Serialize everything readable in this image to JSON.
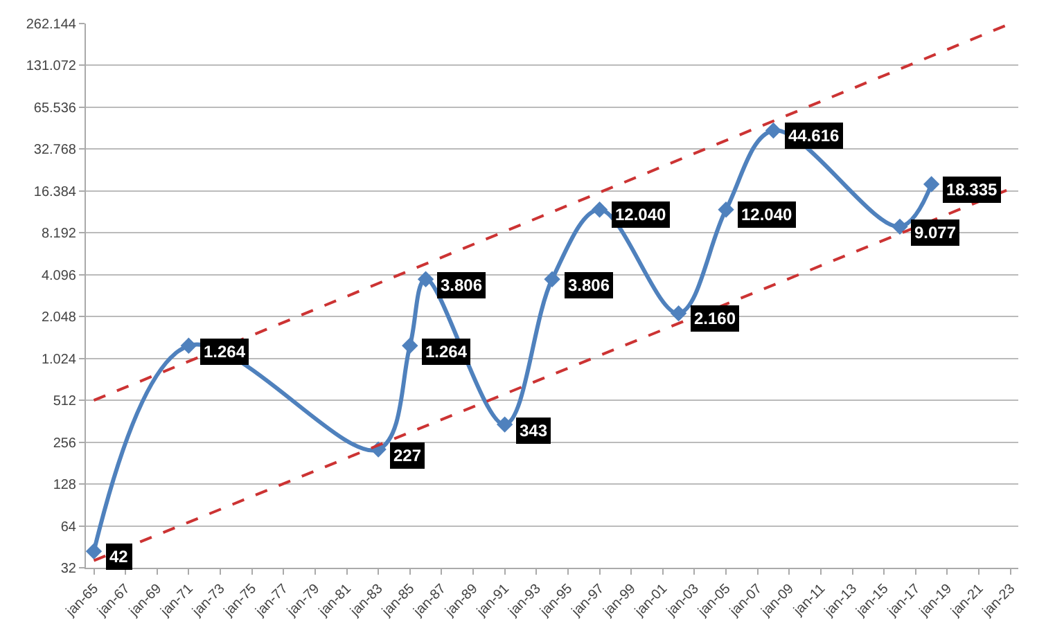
{
  "chart_data": {
    "type": "line",
    "log": "y",
    "grid": "y",
    "xlim": [
      "1964-07",
      "2023-07"
    ],
    "xticks": [
      {
        "value": "1965-01",
        "label": "jan-65"
      },
      {
        "value": "1967-01",
        "label": "jan-67"
      },
      {
        "value": "1969-01",
        "label": "jan-69"
      },
      {
        "value": "1971-01",
        "label": "jan-71"
      },
      {
        "value": "1973-01",
        "label": "jan-73"
      },
      {
        "value": "1975-01",
        "label": "jan-75"
      },
      {
        "value": "1977-01",
        "label": "jan-77"
      },
      {
        "value": "1979-01",
        "label": "jan-79"
      },
      {
        "value": "1981-01",
        "label": "jan-81"
      },
      {
        "value": "1983-01",
        "label": "jan-83"
      },
      {
        "value": "1985-01",
        "label": "jan-85"
      },
      {
        "value": "1987-01",
        "label": "jan-87"
      },
      {
        "value": "1989-01",
        "label": "jan-89"
      },
      {
        "value": "1991-01",
        "label": "jan-91"
      },
      {
        "value": "1993-01",
        "label": "jan-93"
      },
      {
        "value": "1995-01",
        "label": "jan-95"
      },
      {
        "value": "1997-01",
        "label": "jan-97"
      },
      {
        "value": "1999-01",
        "label": "jan-99"
      },
      {
        "value": "2001-01",
        "label": "jan-01"
      },
      {
        "value": "2003-01",
        "label": "jan-03"
      },
      {
        "value": "2005-01",
        "label": "jan-05"
      },
      {
        "value": "2007-01",
        "label": "jan-07"
      },
      {
        "value": "2009-01",
        "label": "jan-09"
      },
      {
        "value": "2011-01",
        "label": "jan-11"
      },
      {
        "value": "2013-01",
        "label": "jan-13"
      },
      {
        "value": "2015-01",
        "label": "jan-15"
      },
      {
        "value": "2017-01",
        "label": "jan-17"
      },
      {
        "value": "2019-01",
        "label": "jan-19"
      },
      {
        "value": "2021-01",
        "label": "jan-21"
      },
      {
        "value": "2023-01",
        "label": "jan-23"
      }
    ],
    "ylim": [
      32,
      262144
    ],
    "yticks": [
      32,
      64,
      128,
      256,
      512,
      {
        "value": 1024,
        "label": "1.024"
      },
      {
        "value": 2048,
        "label": "2.048"
      },
      {
        "value": 4096,
        "label": "4.096"
      },
      {
        "value": 8192,
        "label": "8.192"
      },
      {
        "value": 16384,
        "label": "16.384"
      },
      {
        "value": 32768,
        "label": "32.768"
      },
      {
        "value": 65536,
        "label": "65.536"
      },
      {
        "value": 131072,
        "label": "131.072"
      },
      {
        "value": 262144,
        "label": "262.144"
      }
    ],
    "series": [
      {
        "color": "#4f81bd",
        "marker": "diamond",
        "line_style": "solid",
        "x": [
          "1965-01",
          "1971-01",
          "1983-01",
          "1985-01",
          "1986-01",
          "1991-01",
          "1994-01",
          "1997-01",
          "2002-01",
          "2005-01",
          "2008-01",
          "2016-01",
          "2018-01"
        ],
        "values": [
          42,
          1264,
          227,
          1264,
          3806,
          343,
          3806,
          12040,
          2160,
          12040,
          44616,
          9077,
          18335
        ],
        "value_labels": [
          "42",
          "1.264",
          "227",
          "1.264",
          "3.806",
          "343",
          "3.806",
          "12.040",
          "2.160",
          "12.040",
          "44.616",
          "9.077",
          "18.335"
        ]
      },
      {
        "color": "#cc3333",
        "marker": "none",
        "line_style": "dashed",
        "x": [
          "1965-01",
          "2023-01"
        ],
        "values": [
          512,
          262144
        ]
      },
      {
        "color": "#cc3333",
        "marker": "none",
        "line_style": "dashed",
        "x": [
          "1965-01",
          "2023-01"
        ],
        "values": [
          36,
          17000
        ]
      }
    ]
  }
}
